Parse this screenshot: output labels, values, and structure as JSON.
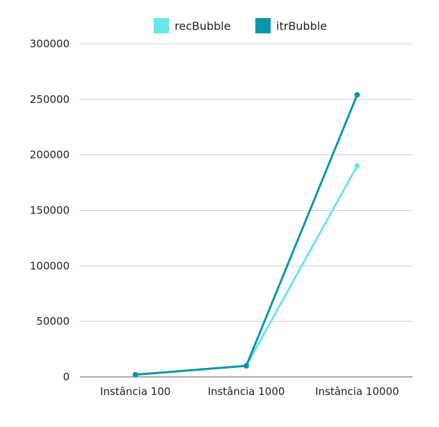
{
  "chart_data": {
    "type": "line",
    "title": "",
    "xlabel": "",
    "ylabel": "",
    "categories": [
      "Instância 100",
      "Instância 1000",
      "Instância 10000"
    ],
    "ylim": [
      0,
      300000
    ],
    "yticks": [
      "0",
      "50000",
      "100000",
      "150000",
      "200000",
      "250000",
      "300000"
    ],
    "grid": true,
    "legend_position": "top",
    "series": [
      {
        "name": "recBubble",
        "values": [
          2000,
          10000,
          190000
        ],
        "color": "#6ae6e9"
      },
      {
        "name": "itrBubble",
        "values": [
          2000,
          10000,
          254000
        ],
        "color": "#0a96aa"
      }
    ]
  }
}
